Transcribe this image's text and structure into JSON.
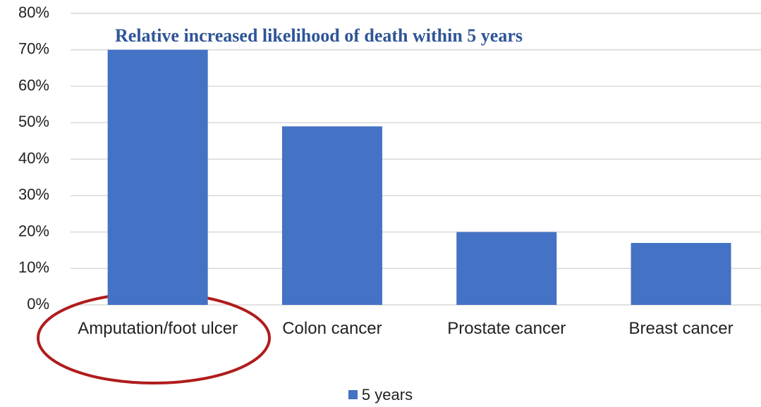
{
  "chart_data": {
    "type": "bar",
    "title": "Relative increased likelihood of death within 5 years",
    "categories": [
      "Amputation/foot ulcer",
      "Colon cancer",
      "Prostate cancer",
      "Breast cancer"
    ],
    "series": [
      {
        "name": "5 years",
        "color": "#4472c4",
        "values": [
          70,
          49,
          20,
          17
        ]
      }
    ],
    "ylim": [
      0,
      80
    ],
    "yticks": [
      {
        "value": 0,
        "label": "0%"
      },
      {
        "value": 10,
        "label": "10%"
      },
      {
        "value": 20,
        "label": "20%"
      },
      {
        "value": 30,
        "label": "30%"
      },
      {
        "value": 40,
        "label": "40%"
      },
      {
        "value": 50,
        "label": "50%"
      },
      {
        "value": 60,
        "label": "60%"
      },
      {
        "value": 70,
        "label": "70%"
      },
      {
        "value": 80,
        "label": "80%"
      }
    ],
    "grid": true
  }
}
